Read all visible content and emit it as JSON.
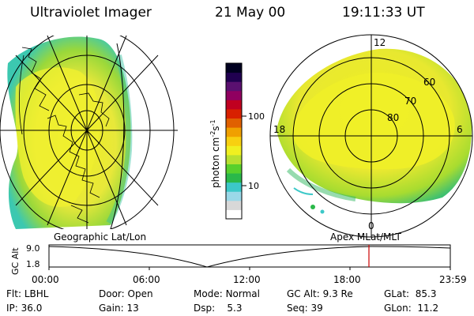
{
  "header": {
    "title": "Ultraviolet Imager",
    "date": "21 May 00",
    "time": "19:11:33 UT"
  },
  "colorbar": {
    "unit_prefix": "photon cm",
    "unit_exp1": "-2",
    "unit_mid": "s",
    "unit_exp2": "-1",
    "ticks": [
      "100",
      "10"
    ],
    "colors": [
      "#ffffff",
      "#d8d8d8",
      "#9ad8e8",
      "#3cc8c8",
      "#2ab84a",
      "#58d02c",
      "#b8e030",
      "#f0f020",
      "#f8d010",
      "#f0a000",
      "#e06000",
      "#d82000",
      "#c00020",
      "#900060",
      "#5a1070",
      "#200050",
      "#000020"
    ]
  },
  "panels": {
    "left_label": "Geographic Lat/Lon",
    "right_label": "Apex MLat/MLT",
    "mlt_labels": {
      "top": "12",
      "left": "18",
      "right": "6",
      "bottom": "0"
    },
    "mlat_labels": [
      "60",
      "70",
      "80"
    ]
  },
  "orbit": {
    "ylabel": "GC Alt",
    "ymax": "9.0",
    "ymin": "1.8",
    "xticks": [
      "00:00",
      "06:00",
      "12:00",
      "18:00",
      "23:59"
    ],
    "current_time_color": "#cc0000"
  },
  "info": {
    "rows": [
      [
        {
          "k": "Flt:",
          "v": "LBHL"
        },
        {
          "k": "Door:",
          "v": "Open"
        },
        {
          "k": "Mode:",
          "v": "Normal"
        },
        {
          "k": "GC Alt:",
          "v": "9.3 Re"
        },
        {
          "k": "GLat:",
          "v": "85.3"
        }
      ],
      [
        {
          "k": "IP:",
          "v": "36.0"
        },
        {
          "k": "Gain:",
          "v": "13"
        },
        {
          "k": "Dsp:",
          "v": "5.3"
        },
        {
          "k": "Seq:",
          "v": "39"
        },
        {
          "k": "GLon:",
          "v": "11.2"
        }
      ]
    ]
  }
}
